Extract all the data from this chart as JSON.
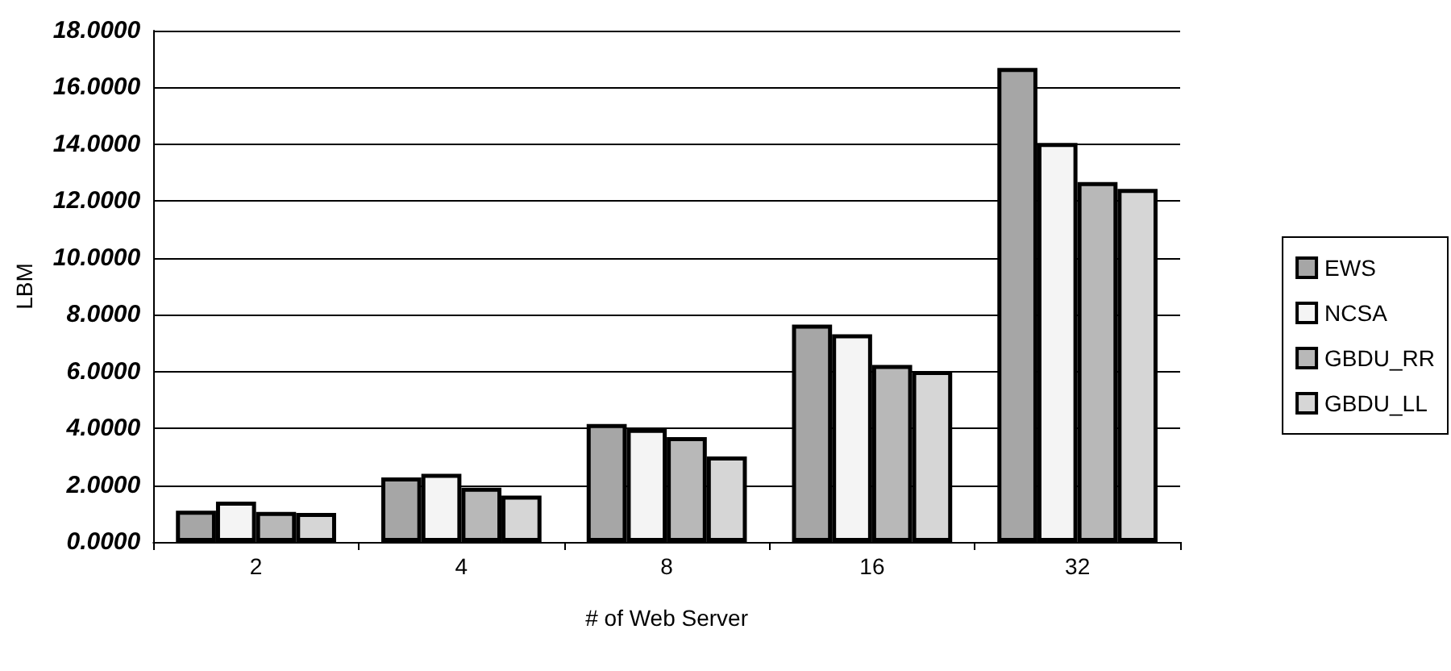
{
  "chart_data": {
    "type": "bar",
    "xlabel": "# of Web Server",
    "ylabel": "LBM",
    "categories": [
      "2",
      "4",
      "8",
      "16",
      "32"
    ],
    "series": [
      {
        "name": "EWS",
        "color": "#a6a6a6",
        "values": [
          1.1,
          2.27,
          4.15,
          7.65,
          16.69
        ]
      },
      {
        "name": "NCSA",
        "color": "#f4f4f4",
        "values": [
          1.42,
          2.4,
          3.98,
          7.31,
          14.05
        ]
      },
      {
        "name": "GBDU_RR",
        "color": "#b8b8b8",
        "values": [
          1.06,
          1.91,
          3.69,
          6.23,
          12.67
        ]
      },
      {
        "name": "GBDU_LL",
        "color": "#d6d6d6",
        "values": [
          1.02,
          1.63,
          3.01,
          6.02,
          12.43
        ]
      }
    ],
    "ylim": [
      0,
      18
    ],
    "yticks": [
      {
        "value": 0,
        "label": "0.0000"
      },
      {
        "value": 2,
        "label": "2.0000"
      },
      {
        "value": 4,
        "label": "4.0000"
      },
      {
        "value": 6,
        "label": "6.0000"
      },
      {
        "value": 8,
        "label": "8.0000"
      },
      {
        "value": 10,
        "label": "10.0000"
      },
      {
        "value": 12,
        "label": "12.0000"
      },
      {
        "value": 14,
        "label": "14.0000"
      },
      {
        "value": 16,
        "label": "16.0000"
      },
      {
        "value": 18,
        "label": "18.0000"
      }
    ],
    "grid": "y",
    "legend": "right"
  }
}
